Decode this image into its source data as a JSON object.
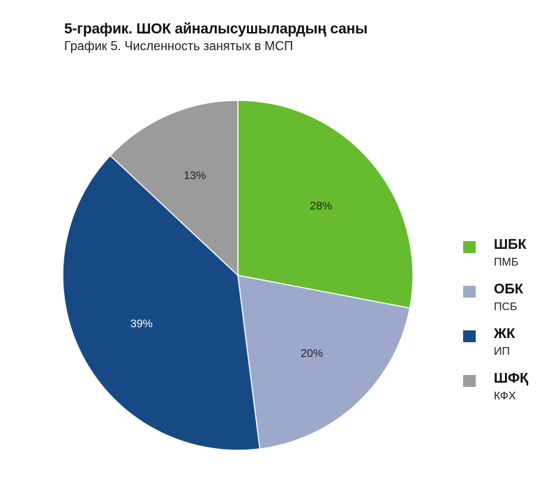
{
  "header": {
    "title": "5-график. ШОК айналысушылардың саны",
    "subtitle": "График 5. Численность занятых в МСП"
  },
  "chart_data": {
    "type": "pie",
    "title": "5-график. ШОК айналысушылардың саны",
    "subtitle": "График 5. Численность занятых в МСП",
    "legend_position": "right",
    "slices": [
      {
        "label": "ШБК",
        "label_ru": "ПМБ",
        "value": 28,
        "display": "28%",
        "color": "#66bb2e",
        "text_color": "#222222"
      },
      {
        "label": "ОБК",
        "label_ru": "ПСБ",
        "value": 20,
        "display": "20%",
        "color": "#9da9ca",
        "text_color": "#222222"
      },
      {
        "label": "ЖК",
        "label_ru": "ИП",
        "value": 39,
        "display": "39%",
        "color": "#174a85",
        "text_color": "#ffffff"
      },
      {
        "label": "ШФҚ",
        "label_ru": "КФХ",
        "value": 13,
        "display": "13%",
        "color": "#9b9b9b",
        "text_color": "#222222"
      }
    ]
  }
}
